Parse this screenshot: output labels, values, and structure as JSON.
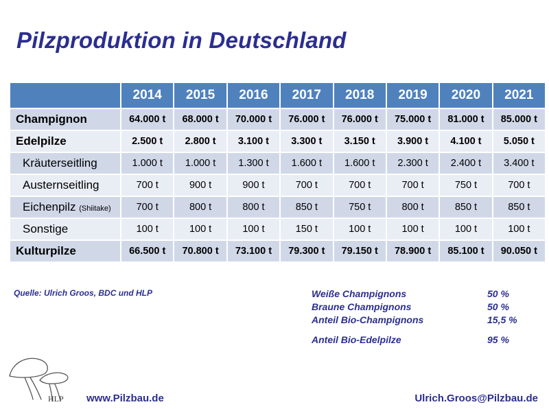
{
  "title": "Pilzproduktion in Deutschland",
  "table": {
    "years": [
      "2014",
      "2015",
      "2016",
      "2017",
      "2018",
      "2019",
      "2020",
      "2021"
    ],
    "rows": [
      {
        "label": "Champignon",
        "values": [
          "64.000 t",
          "68.000 t",
          "70.000 t",
          "76.000 t",
          "76.000 t",
          "75.000 t",
          "81.000 t",
          "85.000 t"
        ]
      },
      {
        "label": "Edelpilze",
        "values": [
          "2.500 t",
          "2.800 t",
          "3.100 t",
          "3.300 t",
          "3.150 t",
          "3.900 t",
          "4.100 t",
          "5.050 t"
        ]
      },
      {
        "label": "Kräuterseitling",
        "values": [
          "1.000 t",
          "1.000 t",
          "1.300 t",
          "1.600 t",
          "1.600 t",
          "2.300 t",
          "2.400 t",
          "3.400 t"
        ]
      },
      {
        "label": "Austernseitling",
        "values": [
          "700 t",
          "900 t",
          "900 t",
          "700 t",
          "700 t",
          "700 t",
          "750 t",
          "700 t"
        ]
      },
      {
        "label": "Eichenpilz",
        "label_note": "(Shiitake)",
        "values": [
          "700 t",
          "800 t",
          "800 t",
          "850 t",
          "750 t",
          "800 t",
          "850 t",
          "850 t"
        ]
      },
      {
        "label": "Sonstige",
        "values": [
          "100 t",
          "100 t",
          "100 t",
          "150 t",
          "100 t",
          "100 t",
          "100 t",
          "100 t"
        ]
      },
      {
        "label": "Kulturpilze",
        "values": [
          "66.500 t",
          "70.800 t",
          "73.100 t",
          "79.300 t",
          "79.150 t",
          "78.900 t",
          "85.100 t",
          "90.050 t"
        ]
      }
    ]
  },
  "source": "Quelle:  Ulrich Groos, BDC und HLP",
  "stats": [
    {
      "label": "Weiße Champignons",
      "value": "50 %"
    },
    {
      "label": "Braune Champignons",
      "value": "50 %"
    },
    {
      "label": "Anteil Bio-Champignons",
      "value": "15,5 %"
    },
    {
      "label": "Anteil Bio-Edelpilze",
      "value": "95 %"
    }
  ],
  "footer": {
    "logo_text": "HLP",
    "url": "www.Pilzbau.de",
    "email": "Ulrich.Groos@Pilzbau.de"
  },
  "colors": {
    "header_bg": "#4f81bd",
    "row_dark": "#d0d8e8",
    "row_light": "#e9edf4",
    "text_blue": "#2b2e8f"
  }
}
